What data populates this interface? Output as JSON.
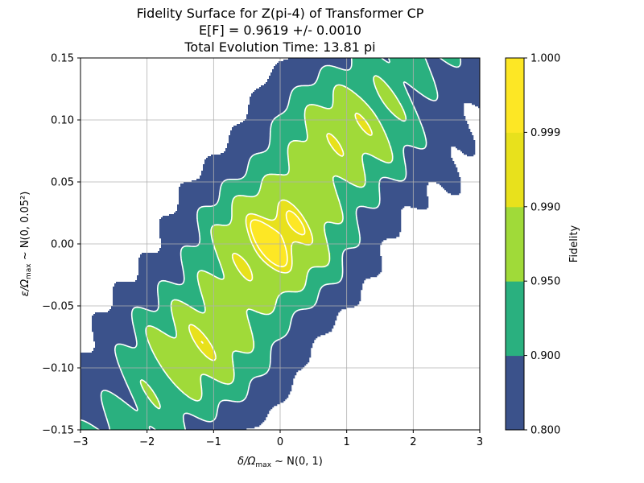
{
  "chart_data": {
    "type": "contourf",
    "title_lines": [
      "Fidelity Surface for Z(pi-4) of Transformer CP",
      "E[F] = 0.9619 +/- 0.0010",
      "Total Evolution Time: 13.81 pi"
    ],
    "xlabel_main": "δ/Ω",
    "xlabel_sub": "max",
    "xlabel_tail": " ~ N(0, 1)",
    "ylabel_main": "ε/Ω",
    "ylabel_sub": "max",
    "ylabel_tail": " ~ N(0, 0.05²)",
    "xlim": [
      -3,
      3
    ],
    "ylim": [
      -0.15,
      0.15
    ],
    "x_ticks": [
      -3,
      -2,
      -1,
      0,
      1,
      2,
      3
    ],
    "y_ticks": [
      -0.15,
      -0.1,
      -0.05,
      0.0,
      0.05,
      0.1,
      0.15
    ],
    "y_tick_labels": [
      "−0.15",
      "−0.10",
      "−0.05",
      "0.00",
      "0.05",
      "0.10",
      "0.15"
    ],
    "x_tick_labels": [
      "−3",
      "−2",
      "−1",
      "0",
      "1",
      "2",
      "3"
    ],
    "grid": true,
    "colorbar": {
      "label": "Fidelity",
      "levels": [
        0.8,
        0.9,
        0.95,
        0.99,
        0.999,
        1.0
      ],
      "level_labels": [
        "0.800",
        "0.900",
        "0.950",
        "0.990",
        "0.999",
        "1.000"
      ],
      "colors": [
        "#3b528b",
        "#2ab07f",
        "#a0da39",
        "#e8e11c",
        "#fde725"
      ]
    },
    "below_min_color": "#ffffff",
    "contour_line_color": "#ffffff"
  }
}
